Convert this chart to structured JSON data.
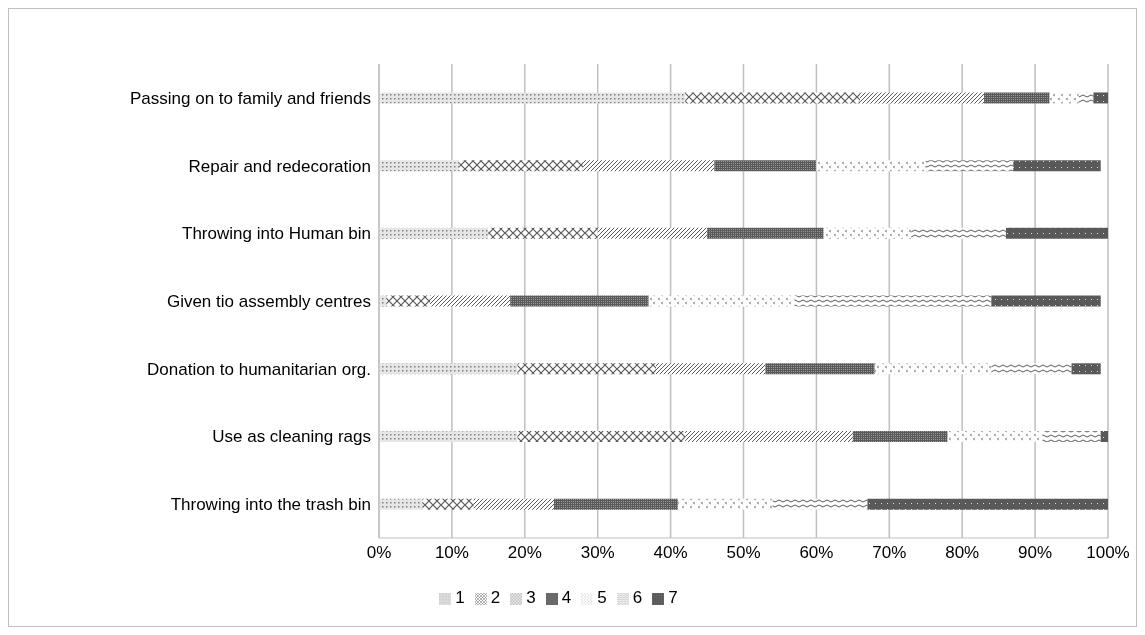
{
  "chart_data": {
    "type": "bar",
    "orientation": "horizontal",
    "stacked": true,
    "categories": [
      "Passing on to family and friends",
      "Repair and redecoration",
      "Throwing into Human bin",
      "Given tio assembly centres",
      "Donation to humanitarian org.",
      "Use as cleaning rags",
      "Throwing into the trash bin"
    ],
    "series": [
      {
        "name": "1",
        "color": "#808080",
        "values": [
          42,
          11,
          15,
          1,
          19,
          19,
          6
        ]
      },
      {
        "name": "2",
        "color": "#595959",
        "values": [
          24,
          17,
          15,
          6,
          19,
          23,
          7
        ]
      },
      {
        "name": "3",
        "color": "#595959",
        "values": [
          17,
          18,
          15,
          11,
          15,
          23,
          11
        ]
      },
      {
        "name": "4",
        "color": "#595959",
        "values": [
          9,
          14,
          16,
          19,
          15,
          13,
          17
        ]
      },
      {
        "name": "5",
        "color": "#808080",
        "values": [
          4,
          15,
          12,
          20,
          16,
          13,
          13
        ]
      },
      {
        "name": "6",
        "color": "#595959",
        "values": [
          2,
          12,
          13,
          27,
          11,
          8,
          13
        ]
      },
      {
        "name": "7",
        "color": "#595959",
        "values": [
          2,
          12,
          14,
          15,
          4,
          1,
          33
        ]
      }
    ],
    "xlim": [
      0,
      100
    ],
    "xticks": [
      {
        "value": 0,
        "label": "0%"
      },
      {
        "value": 10,
        "label": "10%"
      },
      {
        "value": 20,
        "label": "20%"
      },
      {
        "value": 30,
        "label": "30%"
      },
      {
        "value": 40,
        "label": "40%"
      },
      {
        "value": 50,
        "label": "50%"
      },
      {
        "value": 60,
        "label": "60%"
      },
      {
        "value": 70,
        "label": "70%"
      },
      {
        "value": 80,
        "label": "80%"
      },
      {
        "value": 90,
        "label": "90%"
      },
      {
        "value": 100,
        "label": "100%"
      }
    ],
    "grid": "x",
    "legend": "bottom"
  }
}
